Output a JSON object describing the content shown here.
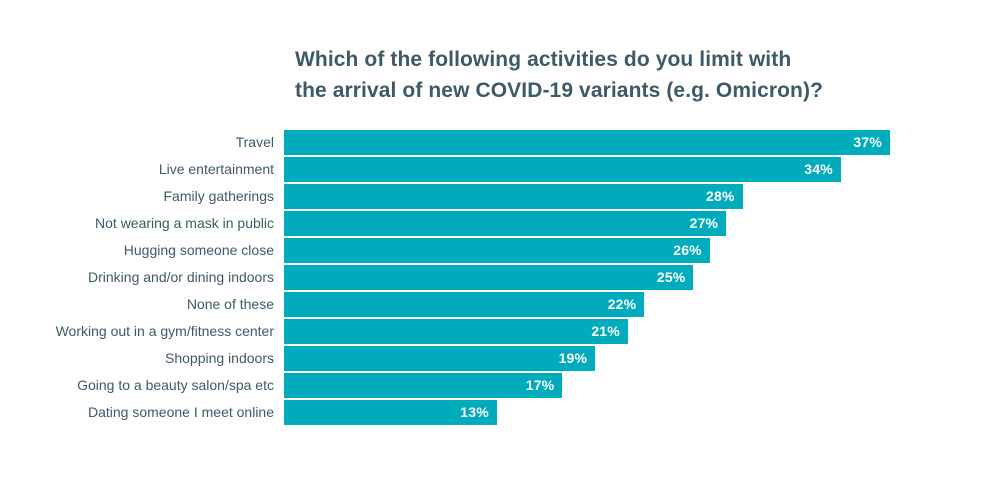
{
  "title": {
    "line1": "Which of the following activities do you limit with",
    "line2": "the arrival of new COVID-19 variants (e.g. Omicron)?"
  },
  "chart_data": {
    "type": "bar",
    "orientation": "horizontal",
    "title": "Which of the following activities do you limit with the arrival of new COVID-19 variants (e.g. Omicron)?",
    "categories": [
      "Travel",
      "Live entertainment",
      "Family gatherings",
      "Not wearing a mask in public",
      "Hugging someone close",
      "Drinking and/or dining indoors",
      "None of these",
      "Working out in a gym/fitness center",
      "Shopping indoors",
      "Going to a beauty salon/spa etc",
      "Dating someone I meet online"
    ],
    "values": [
      37,
      34,
      28,
      27,
      26,
      25,
      22,
      21,
      19,
      17,
      13
    ],
    "value_labels": [
      "37%",
      "34%",
      "28%",
      "27%",
      "26%",
      "25%",
      "22%",
      "21%",
      "19%",
      "17%",
      "13%"
    ],
    "value_suffix": "%",
    "xlabel": "",
    "ylabel": "",
    "xlim": [
      0,
      37
    ],
    "grid": false,
    "legend": null,
    "axis_visible": false,
    "value_label_position": "inside-end",
    "colors": {
      "bar": "#00ABBC",
      "category_label": "#3D5A66",
      "title": "#3D5A66",
      "value_label": "#ffffff",
      "background": "#ffffff"
    }
  }
}
